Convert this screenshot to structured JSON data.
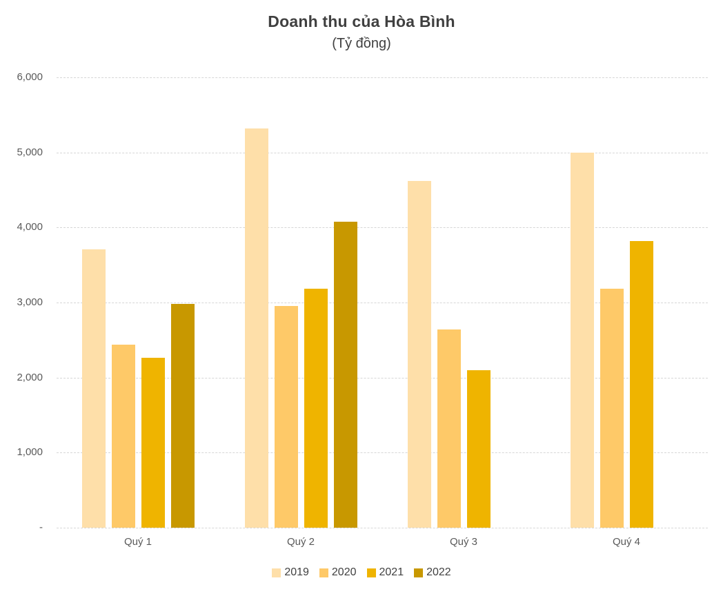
{
  "chart_data": {
    "type": "bar",
    "title": "Doanh thu của Hòa Bình",
    "subtitle": "(Tỷ đồng)",
    "categories": [
      "Quý 1",
      "Quý 2",
      "Quý 3",
      "Quý 4"
    ],
    "series": [
      {
        "name": "2019",
        "color": "#FEDFA9",
        "values": [
          3710,
          5320,
          4620,
          5000
        ]
      },
      {
        "name": "2020",
        "color": "#FEC968",
        "values": [
          2440,
          2950,
          2640,
          3180
        ]
      },
      {
        "name": "2021",
        "color": "#EFB400",
        "values": [
          2260,
          3180,
          2100,
          3820
        ]
      },
      {
        "name": "2022",
        "color": "#C89800",
        "values": [
          2980,
          4080,
          null,
          null
        ]
      }
    ],
    "ylim": [
      0,
      6000
    ],
    "ytick_interval": 1000,
    "ytick_labels_top_down": [
      "6,000",
      "5,000",
      "4,000",
      "3,000",
      "2,000",
      "1,000",
      "-"
    ],
    "grid": "horizontal-dashed",
    "legend_position": "bottom",
    "colors": {
      "grid": "#D6D6D6",
      "axis_text": "#595959",
      "title_text": "#404040"
    }
  }
}
